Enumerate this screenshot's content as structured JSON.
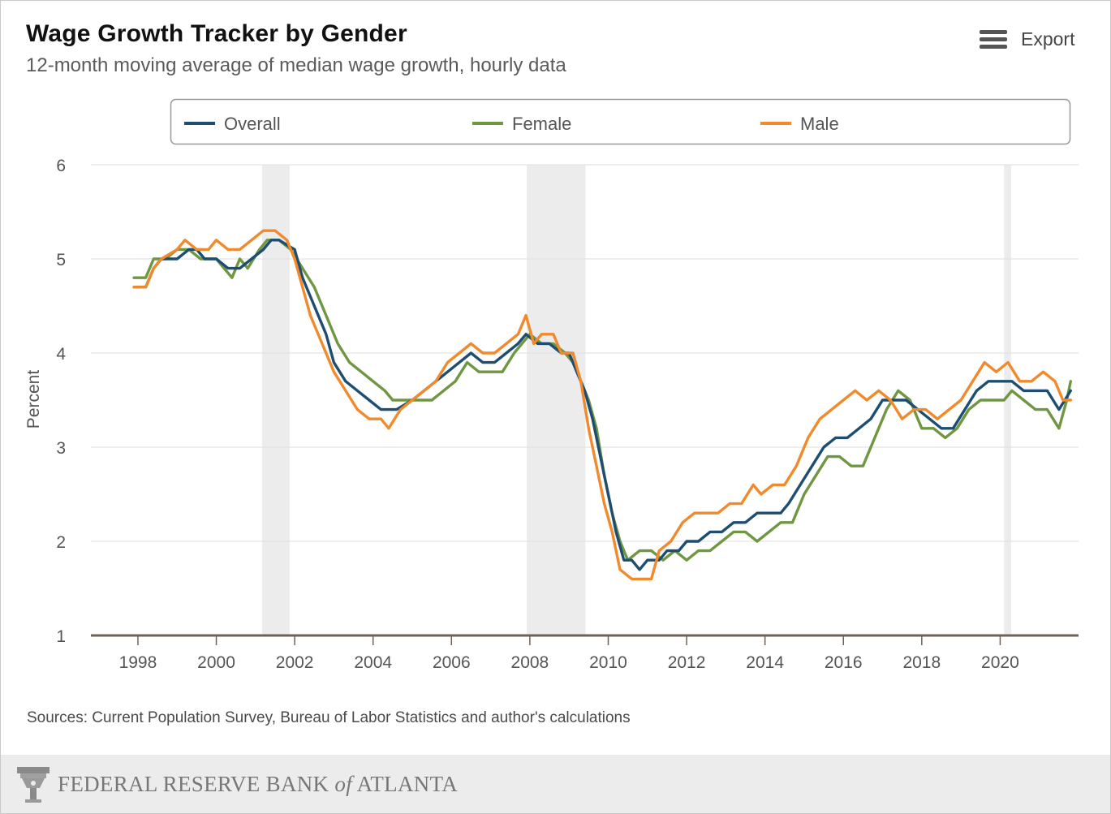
{
  "header": {
    "title": "Wage Growth Tracker by Gender",
    "subtitle": "12-month moving average of median wage growth, hourly data",
    "export_label": "Export"
  },
  "footer": {
    "sources": "Sources: Current Population Survey, Bureau of Labor Statistics and author's calculations",
    "bank_name_part1": "FEDERAL RESERVE BANK ",
    "bank_name_italic": "of",
    "bank_name_part2": " ATLANTA"
  },
  "colors": {
    "overall": "#1d4e72",
    "female": "#6f9641",
    "male": "#f08a2c",
    "recession": "#ececec",
    "grid": "#e3e3e3",
    "axis": "#6b625a",
    "text": "#555555"
  },
  "chart_data": {
    "type": "line",
    "title": "Wage Growth Tracker by Gender",
    "subtitle": "12-month moving average of median wage growth, hourly data",
    "xlabel": "",
    "ylabel": "Percent",
    "xlim": [
      1996.8,
      2022.0
    ],
    "ylim": [
      1,
      6
    ],
    "xticks": [
      1998,
      2000,
      2002,
      2004,
      2006,
      2008,
      2010,
      2012,
      2014,
      2016,
      2018,
      2020
    ],
    "yticks": [
      1,
      2,
      3,
      4,
      5,
      6
    ],
    "grid": true,
    "legend_position": "top",
    "recession_bands": [
      [
        2001.17,
        2001.87
      ],
      [
        2007.92,
        2009.42
      ],
      [
        2020.1,
        2020.28
      ]
    ],
    "series": [
      {
        "name": "Overall",
        "color": "#1d4e72",
        "points": [
          [
            1997.9,
            4.7
          ],
          [
            1998.2,
            4.7
          ],
          [
            1998.4,
            4.9
          ],
          [
            1998.6,
            5.0
          ],
          [
            1999.0,
            5.0
          ],
          [
            1999.3,
            5.1
          ],
          [
            1999.5,
            5.1
          ],
          [
            1999.7,
            5.0
          ],
          [
            2000.0,
            5.0
          ],
          [
            2000.3,
            4.9
          ],
          [
            2000.6,
            4.9
          ],
          [
            2000.9,
            5.0
          ],
          [
            2001.2,
            5.1
          ],
          [
            2001.4,
            5.2
          ],
          [
            2001.6,
            5.2
          ],
          [
            2002.0,
            5.1
          ],
          [
            2002.2,
            4.8
          ],
          [
            2002.5,
            4.5
          ],
          [
            2002.8,
            4.2
          ],
          [
            2003.0,
            3.9
          ],
          [
            2003.3,
            3.7
          ],
          [
            2003.6,
            3.6
          ],
          [
            2003.9,
            3.5
          ],
          [
            2004.2,
            3.4
          ],
          [
            2004.6,
            3.4
          ],
          [
            2005.0,
            3.5
          ],
          [
            2005.3,
            3.6
          ],
          [
            2005.6,
            3.7
          ],
          [
            2005.9,
            3.8
          ],
          [
            2006.2,
            3.9
          ],
          [
            2006.5,
            4.0
          ],
          [
            2006.8,
            3.9
          ],
          [
            2007.1,
            3.9
          ],
          [
            2007.4,
            4.0
          ],
          [
            2007.7,
            4.1
          ],
          [
            2007.9,
            4.2
          ],
          [
            2008.2,
            4.1
          ],
          [
            2008.5,
            4.1
          ],
          [
            2008.8,
            4.0
          ],
          [
            2009.0,
            4.0
          ],
          [
            2009.2,
            3.8
          ],
          [
            2009.4,
            3.6
          ],
          [
            2009.6,
            3.3
          ],
          [
            2009.8,
            2.9
          ],
          [
            2010.0,
            2.5
          ],
          [
            2010.2,
            2.1
          ],
          [
            2010.4,
            1.8
          ],
          [
            2010.6,
            1.8
          ],
          [
            2010.8,
            1.7
          ],
          [
            2011.0,
            1.8
          ],
          [
            2011.3,
            1.8
          ],
          [
            2011.5,
            1.9
          ],
          [
            2011.8,
            1.9
          ],
          [
            2012.0,
            2.0
          ],
          [
            2012.3,
            2.0
          ],
          [
            2012.6,
            2.1
          ],
          [
            2012.9,
            2.1
          ],
          [
            2013.2,
            2.2
          ],
          [
            2013.5,
            2.2
          ],
          [
            2013.8,
            2.3
          ],
          [
            2014.1,
            2.3
          ],
          [
            2014.4,
            2.3
          ],
          [
            2014.6,
            2.4
          ],
          [
            2014.9,
            2.6
          ],
          [
            2015.2,
            2.8
          ],
          [
            2015.5,
            3.0
          ],
          [
            2015.8,
            3.1
          ],
          [
            2016.1,
            3.1
          ],
          [
            2016.4,
            3.2
          ],
          [
            2016.7,
            3.3
          ],
          [
            2017.0,
            3.5
          ],
          [
            2017.3,
            3.5
          ],
          [
            2017.6,
            3.5
          ],
          [
            2017.9,
            3.4
          ],
          [
            2018.2,
            3.3
          ],
          [
            2018.5,
            3.2
          ],
          [
            2018.8,
            3.2
          ],
          [
            2019.1,
            3.4
          ],
          [
            2019.4,
            3.6
          ],
          [
            2019.7,
            3.7
          ],
          [
            2020.0,
            3.7
          ],
          [
            2020.3,
            3.7
          ],
          [
            2020.6,
            3.6
          ],
          [
            2020.9,
            3.6
          ],
          [
            2021.2,
            3.6
          ],
          [
            2021.5,
            3.4
          ],
          [
            2021.8,
            3.6
          ]
        ]
      },
      {
        "name": "Female",
        "color": "#6f9641",
        "points": [
          [
            1997.9,
            4.8
          ],
          [
            1998.2,
            4.8
          ],
          [
            1998.4,
            5.0
          ],
          [
            1998.7,
            5.0
          ],
          [
            1999.0,
            5.1
          ],
          [
            1999.3,
            5.1
          ],
          [
            1999.6,
            5.0
          ],
          [
            2000.0,
            5.0
          ],
          [
            2000.2,
            4.9
          ],
          [
            2000.4,
            4.8
          ],
          [
            2000.6,
            5.0
          ],
          [
            2000.8,
            4.9
          ],
          [
            2001.1,
            5.1
          ],
          [
            2001.3,
            5.2
          ],
          [
            2001.6,
            5.2
          ],
          [
            2001.9,
            5.1
          ],
          [
            2002.2,
            4.9
          ],
          [
            2002.5,
            4.7
          ],
          [
            2002.8,
            4.4
          ],
          [
            2003.1,
            4.1
          ],
          [
            2003.4,
            3.9
          ],
          [
            2003.7,
            3.8
          ],
          [
            2004.0,
            3.7
          ],
          [
            2004.3,
            3.6
          ],
          [
            2004.5,
            3.5
          ],
          [
            2004.8,
            3.5
          ],
          [
            2005.2,
            3.5
          ],
          [
            2005.5,
            3.5
          ],
          [
            2005.8,
            3.6
          ],
          [
            2006.1,
            3.7
          ],
          [
            2006.4,
            3.9
          ],
          [
            2006.7,
            3.8
          ],
          [
            2007.0,
            3.8
          ],
          [
            2007.3,
            3.8
          ],
          [
            2007.6,
            4.0
          ],
          [
            2007.8,
            4.1
          ],
          [
            2008.0,
            4.2
          ],
          [
            2008.3,
            4.1
          ],
          [
            2008.6,
            4.1
          ],
          [
            2008.9,
            4.0
          ],
          [
            2009.1,
            3.9
          ],
          [
            2009.3,
            3.7
          ],
          [
            2009.5,
            3.5
          ],
          [
            2009.7,
            3.2
          ],
          [
            2009.9,
            2.7
          ],
          [
            2010.1,
            2.3
          ],
          [
            2010.3,
            2.0
          ],
          [
            2010.5,
            1.8
          ],
          [
            2010.8,
            1.9
          ],
          [
            2011.1,
            1.9
          ],
          [
            2011.4,
            1.8
          ],
          [
            2011.7,
            1.9
          ],
          [
            2012.0,
            1.8
          ],
          [
            2012.3,
            1.9
          ],
          [
            2012.6,
            1.9
          ],
          [
            2012.9,
            2.0
          ],
          [
            2013.2,
            2.1
          ],
          [
            2013.5,
            2.1
          ],
          [
            2013.8,
            2.0
          ],
          [
            2014.1,
            2.1
          ],
          [
            2014.4,
            2.2
          ],
          [
            2014.7,
            2.2
          ],
          [
            2015.0,
            2.5
          ],
          [
            2015.3,
            2.7
          ],
          [
            2015.6,
            2.9
          ],
          [
            2015.9,
            2.9
          ],
          [
            2016.2,
            2.8
          ],
          [
            2016.5,
            2.8
          ],
          [
            2016.8,
            3.1
          ],
          [
            2017.1,
            3.4
          ],
          [
            2017.4,
            3.6
          ],
          [
            2017.7,
            3.5
          ],
          [
            2018.0,
            3.2
          ],
          [
            2018.3,
            3.2
          ],
          [
            2018.6,
            3.1
          ],
          [
            2018.9,
            3.2
          ],
          [
            2019.2,
            3.4
          ],
          [
            2019.5,
            3.5
          ],
          [
            2019.8,
            3.5
          ],
          [
            2020.1,
            3.5
          ],
          [
            2020.3,
            3.6
          ],
          [
            2020.6,
            3.5
          ],
          [
            2020.9,
            3.4
          ],
          [
            2021.2,
            3.4
          ],
          [
            2021.5,
            3.2
          ],
          [
            2021.7,
            3.5
          ],
          [
            2021.8,
            3.7
          ]
        ]
      },
      {
        "name": "Male",
        "color": "#f08a2c",
        "points": [
          [
            1997.9,
            4.7
          ],
          [
            1998.2,
            4.7
          ],
          [
            1998.4,
            4.9
          ],
          [
            1998.6,
            5.0
          ],
          [
            1999.0,
            5.1
          ],
          [
            1999.2,
            5.2
          ],
          [
            1999.5,
            5.1
          ],
          [
            1999.8,
            5.1
          ],
          [
            2000.0,
            5.2
          ],
          [
            2000.3,
            5.1
          ],
          [
            2000.6,
            5.1
          ],
          [
            2000.9,
            5.2
          ],
          [
            2001.2,
            5.3
          ],
          [
            2001.5,
            5.3
          ],
          [
            2001.8,
            5.2
          ],
          [
            2002.0,
            5.0
          ],
          [
            2002.2,
            4.7
          ],
          [
            2002.4,
            4.4
          ],
          [
            2002.7,
            4.1
          ],
          [
            2003.0,
            3.8
          ],
          [
            2003.3,
            3.6
          ],
          [
            2003.6,
            3.4
          ],
          [
            2003.9,
            3.3
          ],
          [
            2004.2,
            3.3
          ],
          [
            2004.4,
            3.2
          ],
          [
            2004.7,
            3.4
          ],
          [
            2005.0,
            3.5
          ],
          [
            2005.3,
            3.6
          ],
          [
            2005.6,
            3.7
          ],
          [
            2005.9,
            3.9
          ],
          [
            2006.2,
            4.0
          ],
          [
            2006.5,
            4.1
          ],
          [
            2006.8,
            4.0
          ],
          [
            2007.1,
            4.0
          ],
          [
            2007.4,
            4.1
          ],
          [
            2007.7,
            4.2
          ],
          [
            2007.9,
            4.4
          ],
          [
            2008.1,
            4.1
          ],
          [
            2008.3,
            4.2
          ],
          [
            2008.6,
            4.2
          ],
          [
            2008.8,
            4.0
          ],
          [
            2009.1,
            4.0
          ],
          [
            2009.3,
            3.7
          ],
          [
            2009.5,
            3.2
          ],
          [
            2009.7,
            2.8
          ],
          [
            2009.9,
            2.4
          ],
          [
            2010.1,
            2.1
          ],
          [
            2010.3,
            1.7
          ],
          [
            2010.6,
            1.6
          ],
          [
            2010.9,
            1.6
          ],
          [
            2011.1,
            1.6
          ],
          [
            2011.3,
            1.9
          ],
          [
            2011.6,
            2.0
          ],
          [
            2011.9,
            2.2
          ],
          [
            2012.2,
            2.3
          ],
          [
            2012.5,
            2.3
          ],
          [
            2012.8,
            2.3
          ],
          [
            2013.1,
            2.4
          ],
          [
            2013.4,
            2.4
          ],
          [
            2013.7,
            2.6
          ],
          [
            2013.9,
            2.5
          ],
          [
            2014.2,
            2.6
          ],
          [
            2014.5,
            2.6
          ],
          [
            2014.8,
            2.8
          ],
          [
            2015.1,
            3.1
          ],
          [
            2015.4,
            3.3
          ],
          [
            2015.7,
            3.4
          ],
          [
            2016.0,
            3.5
          ],
          [
            2016.3,
            3.6
          ],
          [
            2016.6,
            3.5
          ],
          [
            2016.9,
            3.6
          ],
          [
            2017.2,
            3.5
          ],
          [
            2017.5,
            3.3
          ],
          [
            2017.8,
            3.4
          ],
          [
            2018.1,
            3.4
          ],
          [
            2018.4,
            3.3
          ],
          [
            2018.7,
            3.4
          ],
          [
            2019.0,
            3.5
          ],
          [
            2019.3,
            3.7
          ],
          [
            2019.6,
            3.9
          ],
          [
            2019.9,
            3.8
          ],
          [
            2020.2,
            3.9
          ],
          [
            2020.5,
            3.7
          ],
          [
            2020.8,
            3.7
          ],
          [
            2021.1,
            3.8
          ],
          [
            2021.4,
            3.7
          ],
          [
            2021.6,
            3.5
          ],
          [
            2021.8,
            3.5
          ]
        ]
      }
    ]
  }
}
